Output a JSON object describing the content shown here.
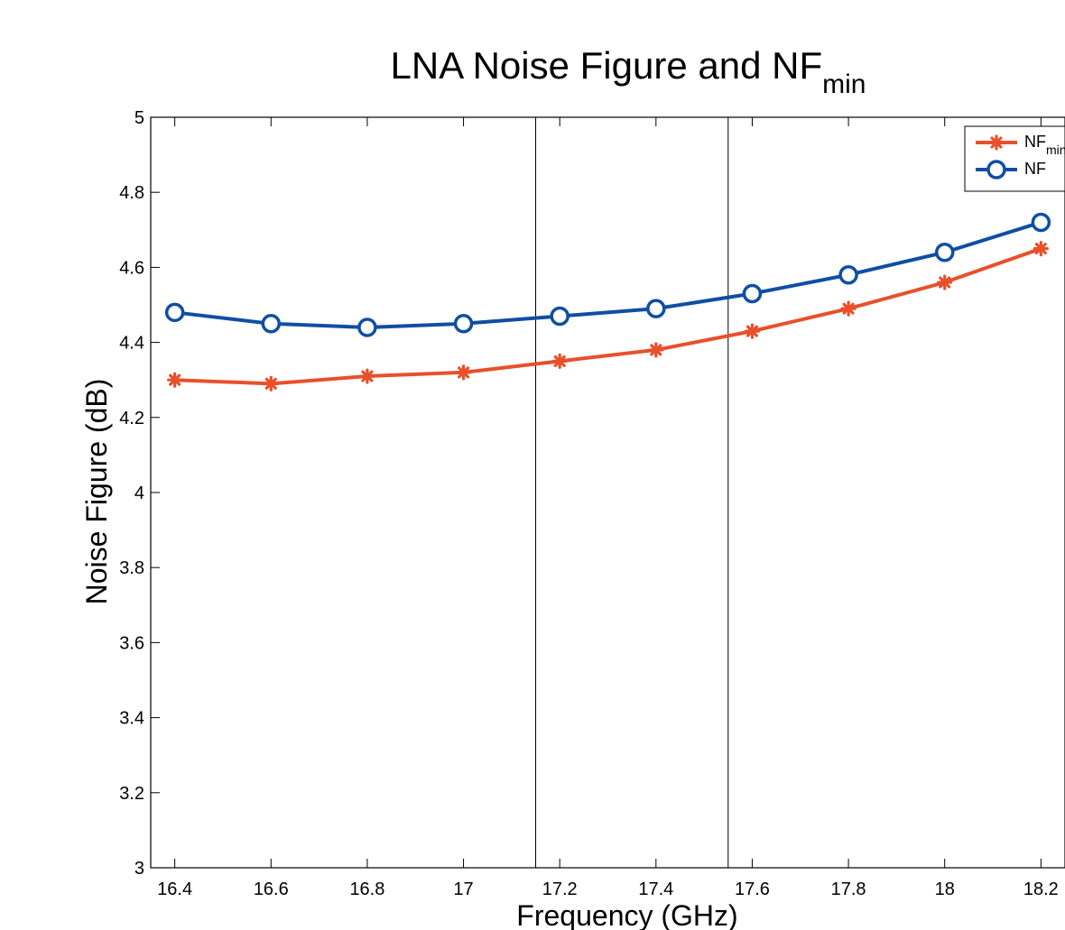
{
  "chart_data": {
    "type": "line",
    "title": "LNA Noise Figure and NF",
    "title_subscript": "min",
    "xlabel": "Frequency (GHz)",
    "ylabel": "Noise Figure (dB)",
    "xlim": [
      16.35,
      18.25
    ],
    "ylim": [
      3,
      5
    ],
    "x_ticks": [
      16.4,
      16.6,
      16.8,
      17,
      17.2,
      17.4,
      17.6,
      17.8,
      18,
      18.2
    ],
    "x_tick_labels": [
      "16.4",
      "16.6",
      "16.8",
      "17",
      "17.2",
      "17.4",
      "17.6",
      "17.8",
      "18",
      "18.2"
    ],
    "y_ticks": [
      3,
      3.2,
      3.4,
      3.6,
      3.8,
      4,
      4.2,
      4.4,
      4.6,
      4.8,
      5
    ],
    "y_tick_labels": [
      "3",
      "3.2",
      "3.4",
      "3.6",
      "3.8",
      "4",
      "4.2",
      "4.4",
      "4.6",
      "4.8",
      "5"
    ],
    "vlines": [
      17.15,
      17.55
    ],
    "grid": false,
    "legend_position": "top-right",
    "x": [
      16.4,
      16.6,
      16.8,
      17,
      17.2,
      17.4,
      17.6,
      17.8,
      18,
      18.2
    ],
    "series": [
      {
        "name": "NF",
        "name_subscript": "min",
        "marker": "asterisk",
        "color": "#e8502b",
        "values": [
          4.3,
          4.29,
          4.31,
          4.32,
          4.35,
          4.38,
          4.43,
          4.49,
          4.56,
          4.65
        ]
      },
      {
        "name": "NF",
        "name_subscript": "",
        "marker": "circle",
        "color": "#0f4ea3",
        "values": [
          4.48,
          4.45,
          4.44,
          4.45,
          4.47,
          4.49,
          4.53,
          4.58,
          4.64,
          4.72
        ]
      }
    ]
  }
}
